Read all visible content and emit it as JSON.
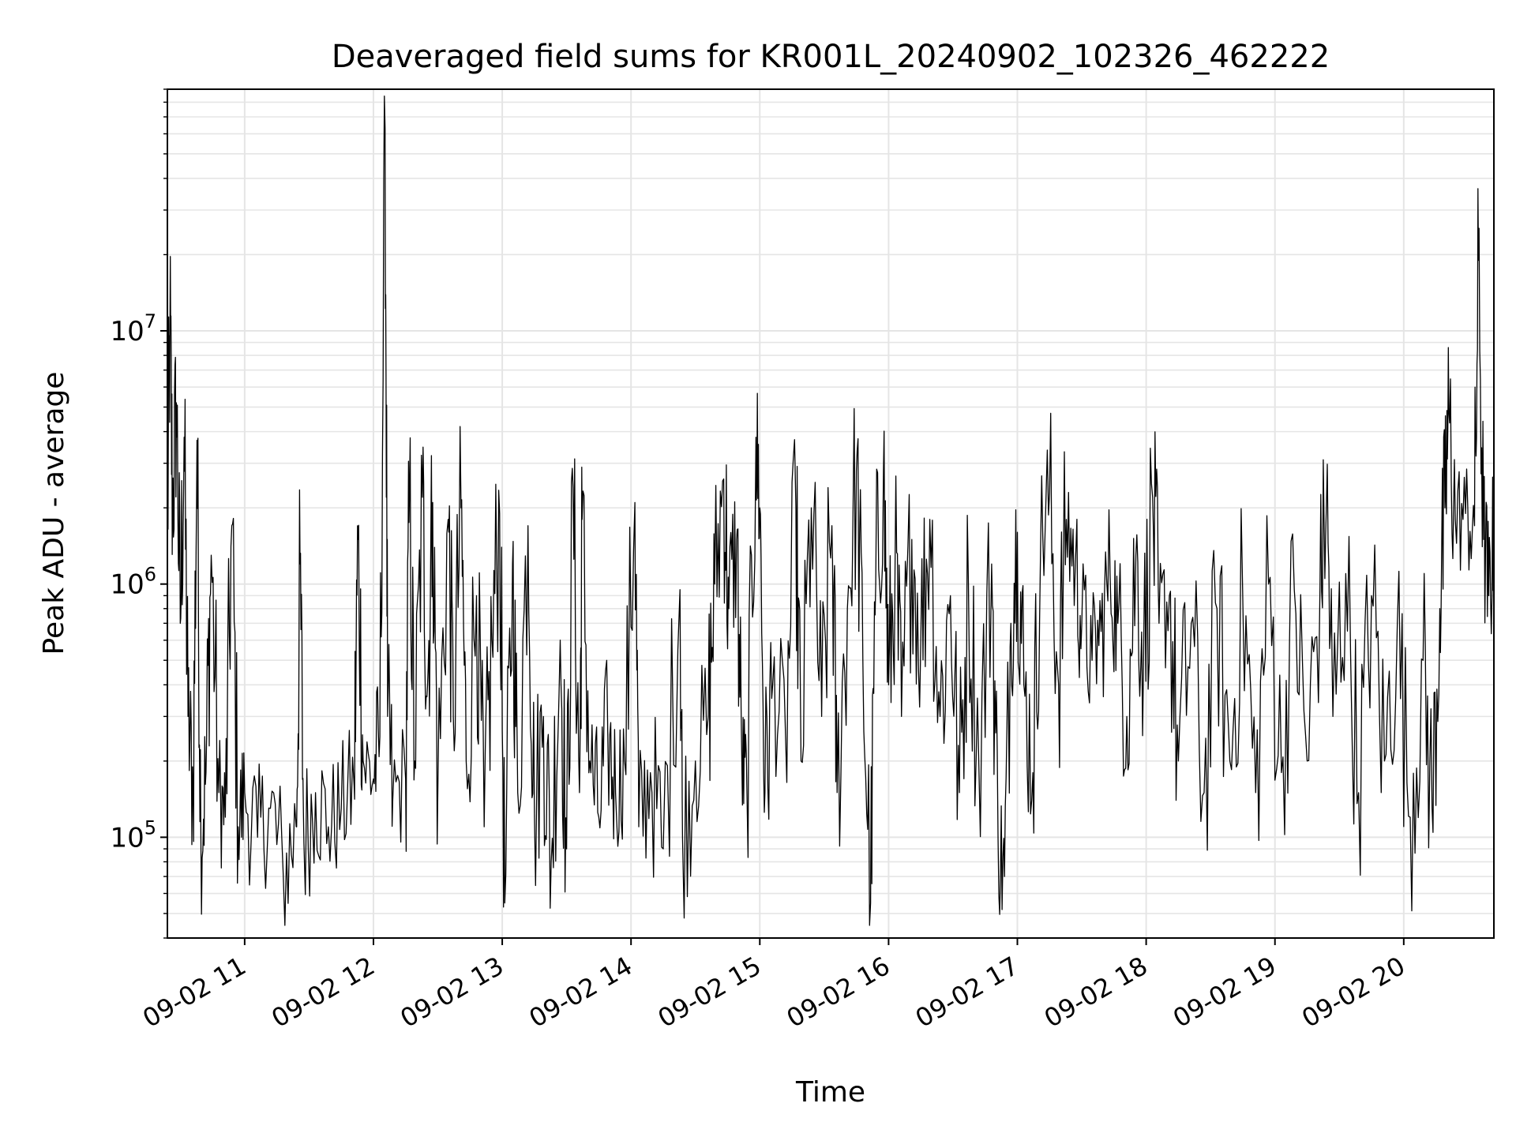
{
  "chart_data": {
    "type": "line",
    "title": "Deaveraged field sums for KR001L_20240902_102326_462222",
    "xlabel": "Time",
    "ylabel": "Peak ADU - average",
    "yscale": "log",
    "ylim": [
      40000,
      90000000
    ],
    "xlim_hours": [
      10.4,
      20.7
    ],
    "x_tick_hours": [
      11,
      12,
      13,
      14,
      15,
      16,
      17,
      18,
      19,
      20
    ],
    "x_tick_labels": [
      "09-02 11",
      "09-02 12",
      "09-02 13",
      "09-02 14",
      "09-02 15",
      "09-02 16",
      "09-02 17",
      "09-02 18",
      "09-02 19",
      "09-02 20"
    ],
    "y_ticks": [
      {
        "value": 100000,
        "base": "10",
        "exp": "5"
      },
      {
        "value": 1000000,
        "base": "10",
        "exp": "6"
      },
      {
        "value": 10000000,
        "base": "10",
        "exp": "7"
      }
    ],
    "grid": true,
    "line_color": "#000000",
    "grid_color": "#e5e5e5",
    "series": [
      {
        "name": "deaveraged field sums",
        "control_points": [
          [
            10.4,
            1500000
          ],
          [
            10.42,
            11000000
          ],
          [
            10.44,
            2000000
          ],
          [
            10.47,
            5200000
          ],
          [
            10.5,
            700000
          ],
          [
            10.53,
            3800000
          ],
          [
            10.56,
            300000
          ],
          [
            10.6,
            150000
          ],
          [
            10.63,
            3700000
          ],
          [
            10.66,
            100000
          ],
          [
            10.7,
            180000
          ],
          [
            10.74,
            1300000
          ],
          [
            10.8,
            150000
          ],
          [
            10.85,
            120000
          ],
          [
            10.9,
            1700000
          ],
          [
            10.95,
            110000
          ],
          [
            11.0,
            150000
          ],
          [
            11.1,
            100000
          ],
          [
            11.2,
            130000
          ],
          [
            11.3,
            70000
          ],
          [
            11.4,
            110000
          ],
          [
            11.43,
            1200000
          ],
          [
            11.46,
            95000
          ],
          [
            11.55,
            150000
          ],
          [
            11.65,
            110000
          ],
          [
            11.75,
            130000
          ],
          [
            11.85,
            160000
          ],
          [
            11.88,
            1500000
          ],
          [
            11.92,
            200000
          ],
          [
            12.0,
            170000
          ],
          [
            12.05,
            250000
          ],
          [
            12.09,
            63000000
          ],
          [
            12.11,
            300000
          ],
          [
            12.15,
            140000
          ],
          [
            12.25,
            170000
          ],
          [
            12.28,
            2300000
          ],
          [
            12.32,
            200000
          ],
          [
            12.38,
            2200000
          ],
          [
            12.42,
            400000
          ],
          [
            12.46,
            2100000
          ],
          [
            12.5,
            150000
          ],
          [
            12.58,
            1800000
          ],
          [
            12.62,
            300000
          ],
          [
            12.68,
            2000000
          ],
          [
            12.72,
            200000
          ],
          [
            12.8,
            900000
          ],
          [
            12.86,
            110000
          ],
          [
            12.92,
            600000
          ],
          [
            12.98,
            1900000
          ],
          [
            13.02,
            55000
          ],
          [
            13.08,
            1200000
          ],
          [
            13.12,
            150000
          ],
          [
            13.2,
            1700000
          ],
          [
            13.25,
            120000
          ],
          [
            13.32,
            300000
          ],
          [
            13.38,
            80000
          ],
          [
            13.45,
            600000
          ],
          [
            13.5,
            90000
          ],
          [
            13.55,
            2400000
          ],
          [
            13.6,
            150000
          ],
          [
            13.62,
            1800000
          ],
          [
            13.68,
            200000
          ],
          [
            13.75,
            120000
          ],
          [
            13.82,
            250000
          ],
          [
            13.88,
            150000
          ],
          [
            13.95,
            200000
          ],
          [
            14.03,
            2100000
          ],
          [
            14.06,
            110000
          ],
          [
            14.15,
            180000
          ],
          [
            14.25,
            90000
          ],
          [
            14.38,
            950000
          ],
          [
            14.4,
            100000
          ],
          [
            14.5,
            200000
          ],
          [
            14.6,
            300000
          ],
          [
            14.65,
            1000000
          ],
          [
            14.72,
            2600000
          ],
          [
            14.76,
            800000
          ],
          [
            14.82,
            1500000
          ],
          [
            14.86,
            200000
          ],
          [
            14.9,
            150000
          ],
          [
            14.97,
            3800000
          ],
          [
            15.0,
            2000000
          ],
          [
            15.04,
            150000
          ],
          [
            15.1,
            400000
          ],
          [
            15.2,
            250000
          ],
          [
            15.28,
            2000000
          ],
          [
            15.32,
            200000
          ],
          [
            15.4,
            2000000
          ],
          [
            15.48,
            300000
          ],
          [
            15.56,
            1700000
          ],
          [
            15.6,
            150000
          ],
          [
            15.68,
            800000
          ],
          [
            15.75,
            2800000
          ],
          [
            15.8,
            500000
          ],
          [
            15.86,
            55000
          ],
          [
            15.9,
            1000000
          ],
          [
            15.96,
            2800000
          ],
          [
            16.0,
            400000
          ],
          [
            16.05,
            1200000
          ],
          [
            16.1,
            300000
          ],
          [
            16.18,
            1500000
          ],
          [
            16.25,
            600000
          ],
          [
            16.32,
            1800000
          ],
          [
            16.4,
            300000
          ],
          [
            16.48,
            900000
          ],
          [
            16.55,
            150000
          ],
          [
            16.62,
            1000000
          ],
          [
            16.7,
            200000
          ],
          [
            16.8,
            1200000
          ],
          [
            16.85,
            100000
          ],
          [
            16.9,
            70000
          ],
          [
            16.95,
            700000
          ],
          [
            17.0,
            1600000
          ],
          [
            17.05,
            400000
          ],
          [
            17.12,
            180000
          ],
          [
            17.18,
            1400000
          ],
          [
            17.25,
            2300000
          ],
          [
            17.32,
            400000
          ],
          [
            17.38,
            1800000
          ],
          [
            17.45,
            1200000
          ],
          [
            17.5,
            700000
          ],
          [
            17.58,
            500000
          ],
          [
            17.65,
            650000
          ],
          [
            17.72,
            1100000
          ],
          [
            17.78,
            700000
          ],
          [
            17.85,
            300000
          ],
          [
            17.92,
            1300000
          ],
          [
            17.98,
            500000
          ],
          [
            18.05,
            2200000
          ],
          [
            18.1,
            700000
          ],
          [
            18.18,
            900000
          ],
          [
            18.25,
            200000
          ],
          [
            18.35,
            700000
          ],
          [
            18.45,
            150000
          ],
          [
            18.55,
            800000
          ],
          [
            18.65,
            200000
          ],
          [
            18.75,
            900000
          ],
          [
            18.85,
            150000
          ],
          [
            18.95,
            1000000
          ],
          [
            19.05,
            180000
          ],
          [
            19.15,
            950000
          ],
          [
            19.25,
            200000
          ],
          [
            19.35,
            1000000
          ],
          [
            19.4,
            2100000
          ],
          [
            19.45,
            300000
          ],
          [
            19.55,
            1100000
          ],
          [
            19.65,
            150000
          ],
          [
            19.75,
            900000
          ],
          [
            19.85,
            200000
          ],
          [
            19.95,
            700000
          ],
          [
            20.05,
            120000
          ],
          [
            20.15,
            500000
          ],
          [
            20.22,
            130000
          ],
          [
            20.28,
            800000
          ],
          [
            20.32,
            2000000
          ],
          [
            20.35,
            4800000
          ],
          [
            20.4,
            1800000
          ],
          [
            20.48,
            1900000
          ],
          [
            20.55,
            1700000
          ],
          [
            20.58,
            19000000
          ],
          [
            20.62,
            1500000
          ],
          [
            20.66,
            900000
          ],
          [
            20.7,
            1500000
          ]
        ]
      }
    ]
  }
}
